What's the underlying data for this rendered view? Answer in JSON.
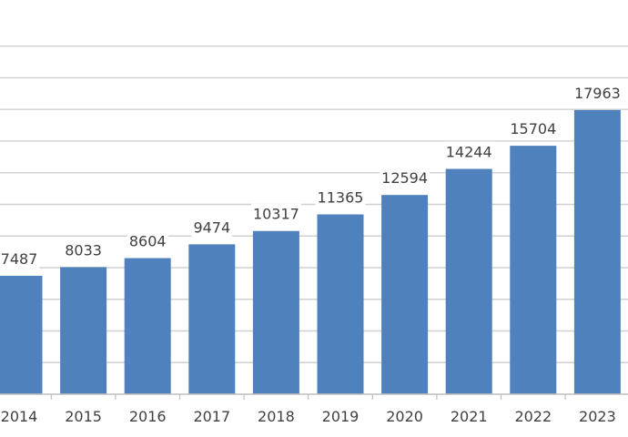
{
  "chart_data": {
    "type": "bar",
    "categories": [
      "2014",
      "2015",
      "2016",
      "2017",
      "2018",
      "2019",
      "2020",
      "2021",
      "2022",
      "2023"
    ],
    "values": [
      7487,
      8033,
      8604,
      9474,
      10317,
      11365,
      12594,
      14244,
      15704,
      17963
    ],
    "title": "",
    "xlabel": "",
    "ylabel": "",
    "ylim": [
      0,
      22000
    ],
    "grid": true,
    "data_labels": true,
    "legend": "none",
    "colors": {
      "bar": "#4f81bd",
      "grid": "#d0d0d0",
      "text": "#404040"
    }
  }
}
